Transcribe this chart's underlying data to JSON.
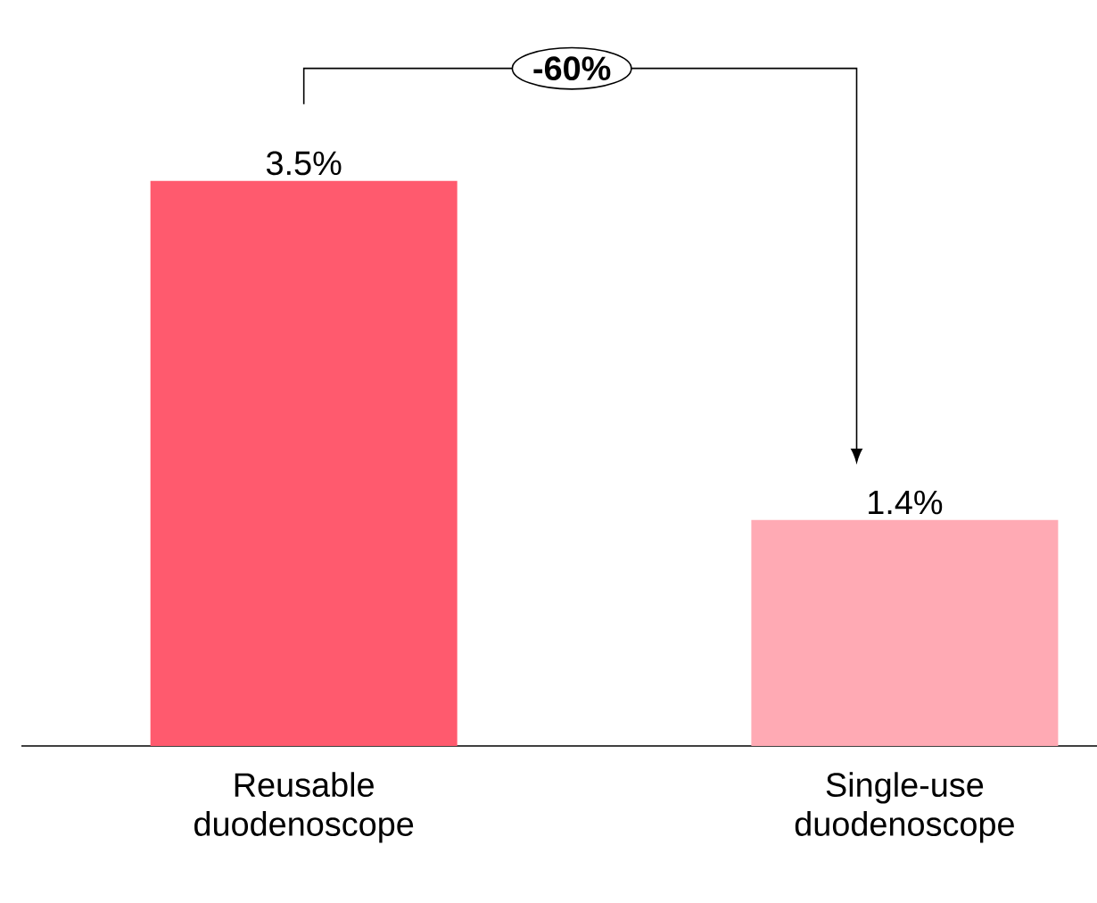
{
  "chart_data": {
    "type": "bar",
    "categories": [
      "Reusable duodenoscope",
      "Single-use duodenoscope"
    ],
    "values": [
      3.5,
      1.4
    ],
    "colors": [
      "#ff5a6e",
      "#ffaab4"
    ],
    "value_labels": [
      "3.5%",
      "1.4%"
    ],
    "annotations": [
      "-60%"
    ]
  }
}
